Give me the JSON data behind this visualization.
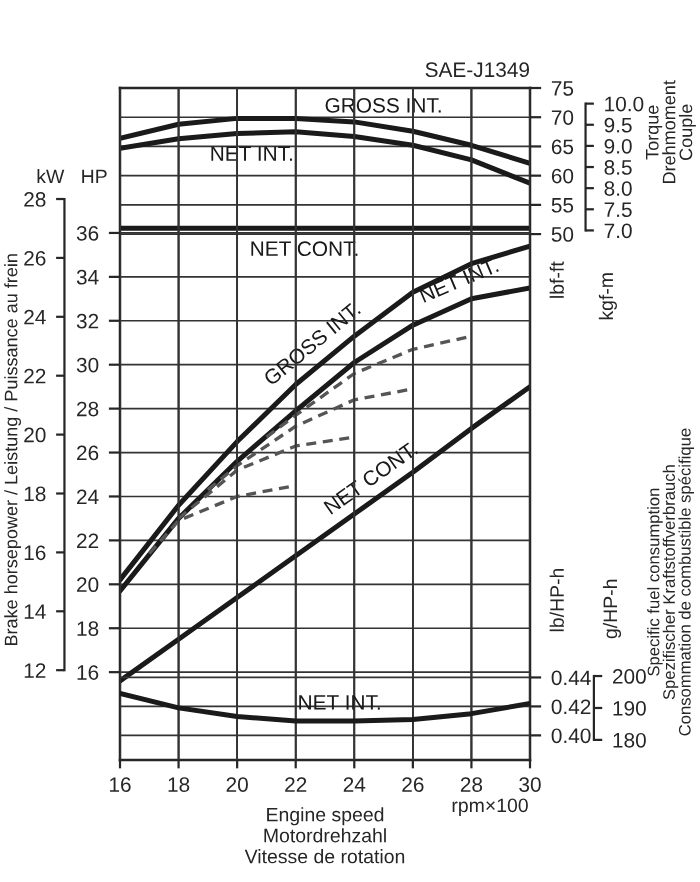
{
  "chart_data": [
    {
      "type": "line",
      "title": "SAE-J1349",
      "ylabel": "lbf-ft",
      "y2label": "kgf-m",
      "annotations": [
        "Torque\nDrehmoment\nCouple"
      ],
      "x": [
        16,
        18,
        20,
        22,
        24,
        26,
        28,
        30
      ],
      "xlim": [
        16,
        30
      ],
      "xticks": [
        16,
        18,
        20,
        22,
        24,
        26,
        28,
        30
      ],
      "ylim": [
        -40,
        75
      ],
      "yticks": [
        50,
        55,
        60,
        65,
        70,
        75
      ],
      "y2lim": [
        -5.53,
        10.37
      ],
      "y2ticks": [
        {
          "value": 7,
          "label": "7.0"
        },
        {
          "value": 7.5,
          "label": "7.5"
        },
        {
          "value": 8,
          "label": "8.0"
        },
        {
          "value": 8.5,
          "label": "8.5"
        },
        {
          "value": 9,
          "label": "9.0"
        },
        {
          "value": 9.5,
          "label": "9.5"
        },
        {
          "value": 10,
          "label": "10.0"
        }
      ],
      "tick_labels": "y",
      "grid": true,
      "legend": false,
      "series": [
        {
          "name": "GROSS INT.",
          "color": "#1a1a1a",
          "values": [
            66.4,
            68.8,
            69.8,
            69.8,
            69.2,
            67.6,
            65.2,
            62.1
          ]
        },
        {
          "name": "NET INT.",
          "color": "#1a1a1a",
          "values": [
            64.7,
            66.3,
            67.2,
            67.5,
            66.7,
            65.2,
            62.7,
            58.7
          ]
        },
        {
          "name": "NET CONT.",
          "color": "#1a1a1a",
          "values": [
            51,
            51,
            51,
            51,
            51,
            51,
            51,
            51
          ]
        }
      ]
    },
    {
      "type": "line",
      "ylabel": "HP",
      "y2label": "kW",
      "annotations": [
        "Brake horsepower / Leistung / Puissance au frein"
      ],
      "x": [
        16,
        18,
        20,
        22,
        24,
        26,
        28,
        30
      ],
      "xlim": [
        16,
        30
      ],
      "xticks": [
        16,
        18,
        20,
        22,
        24,
        26,
        28,
        30
      ],
      "ylim": [
        12,
        42.6
      ],
      "yticks": [
        16,
        18,
        20,
        22,
        24,
        26,
        28,
        30,
        32,
        34,
        36
      ],
      "y2lim": [
        8.95,
        31.77
      ],
      "y2ticks": [
        12,
        14,
        16,
        18,
        20,
        22,
        24,
        26,
        28
      ],
      "tick_labels": "y",
      "grid": true,
      "legend": false,
      "series": [
        {
          "name": "GROSS INT.",
          "color": "#1a1a1a",
          "values": [
            20.2,
            23.6,
            26.5,
            29.1,
            31.3,
            33.3,
            34.6,
            35.4
          ]
        },
        {
          "name": "NET INT.",
          "color": "#1a1a1a",
          "values": [
            19.7,
            23.0,
            25.6,
            27.9,
            30.1,
            31.8,
            33.0,
            33.5
          ]
        },
        {
          "name": "NET CONT.",
          "color": "#1a1a1a",
          "values": [
            15.6,
            17.5,
            19.4,
            21.3,
            23.2,
            25.1,
            27.1,
            29.0
          ]
        },
        {
          "color": "#555555",
          "line_style": "dashed",
          "x": [
            17,
            18,
            20,
            22
          ],
          "values": [
            21.4,
            22.9,
            24.0,
            24.5
          ]
        },
        {
          "color": "#555555",
          "line_style": "dashed",
          "x": [
            18,
            20,
            22,
            24
          ],
          "values": [
            23.0,
            25.2,
            26.3,
            26.7
          ]
        },
        {
          "color": "#555555",
          "line_style": "dashed",
          "x": [
            19,
            20,
            22,
            24,
            26
          ],
          "values": [
            24.3,
            25.4,
            27.2,
            28.4,
            28.9
          ]
        },
        {
          "color": "#555555",
          "line_style": "dashed",
          "x": [
            21,
            22,
            24,
            26,
            28
          ],
          "values": [
            26.7,
            27.7,
            29.6,
            30.7,
            31.3
          ]
        }
      ]
    },
    {
      "type": "line",
      "xlabel": "Engine speed\nMotordrehzahl\nVitesse de rotation",
      "ylabel": "lb/HP-h",
      "y2label": "g/HP-h",
      "annotations": [
        "rpm×100",
        "Specific fuel consumption\nSpezifischer Kraftstoffverbrauch\nConsommation de combustible spécifique"
      ],
      "x": [
        16,
        18,
        20,
        22,
        24,
        26,
        28,
        30
      ],
      "xlim": [
        16,
        30
      ],
      "xticks": [
        16,
        18,
        20,
        22,
        24,
        26,
        28,
        30
      ],
      "ylim": [
        0.383,
        0.847
      ],
      "yticks": [
        {
          "value": 0.4,
          "label": "0.40"
        },
        {
          "value": 0.42,
          "label": "0.42"
        },
        {
          "value": 0.44,
          "label": "0.44"
        }
      ],
      "y2lim": [
        173.7,
        384.2
      ],
      "y2ticks": [
        180,
        190,
        200
      ],
      "grid": true,
      "legend": false,
      "series": [
        {
          "name": "NET INT.",
          "color": "#1a1a1a",
          "values": [
            0.429,
            0.419,
            0.413,
            0.41,
            0.41,
            0.411,
            0.415,
            0.422
          ]
        }
      ]
    }
  ]
}
